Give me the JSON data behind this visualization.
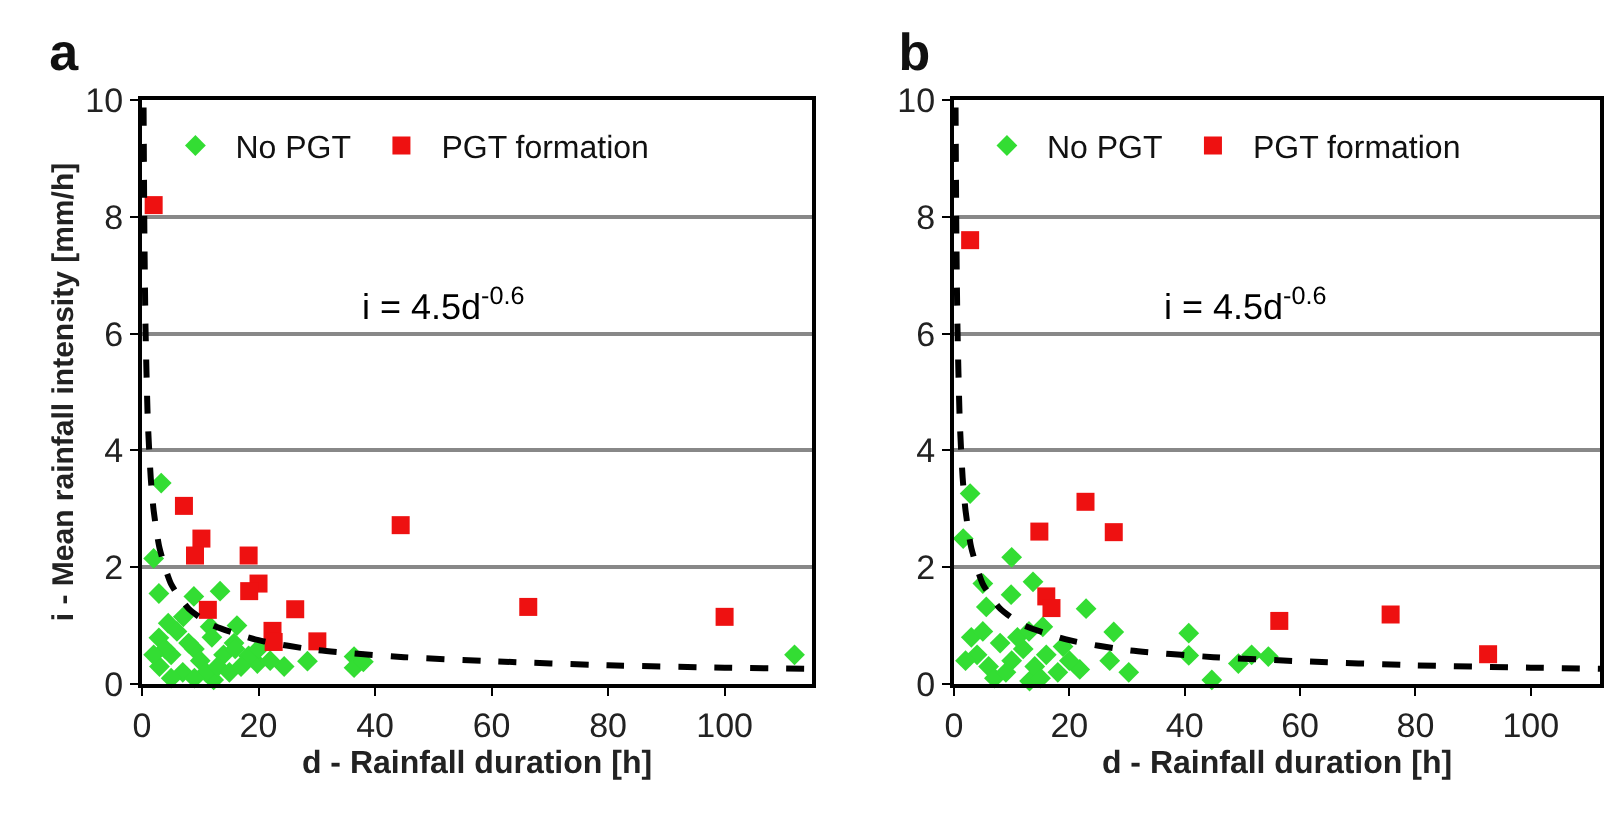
{
  "chart_data": [
    {
      "type": "scatter",
      "title": "a",
      "xlabel": "d - Rainfall duration [h]",
      "ylabel": "i - Mean rainfall intensity [mm/h]",
      "xlim": [
        0,
        115
      ],
      "xticks": [
        0,
        20,
        40,
        60,
        80,
        100
      ],
      "ylim": [
        0,
        10
      ],
      "yticks": [
        0,
        2,
        4,
        6,
        8,
        10
      ],
      "grid": "y",
      "legend": "top left",
      "annotations": [
        "i = 4.5d$^{-0.6}$"
      ],
      "series": [
        {
          "name": "No PGT",
          "color": "#33dd33",
          "marker": "diamond",
          "x": [
            3.3,
            2,
            2.9,
            13.4,
            8.9,
            7.1,
            4.5,
            16.3,
            11.7,
            2.9,
            19.8,
            24.4,
            28.4,
            36.4,
            36.4,
            38,
            18.3,
            15.8,
            12.3,
            112,
            3,
            5,
            7,
            9,
            10,
            12,
            14,
            6,
            8,
            4,
            11,
            13,
            2,
            15,
            5,
            9,
            16,
            20,
            17,
            22
          ],
          "values": [
            3.44,
            2.15,
            1.55,
            1.59,
            1.5,
            1.15,
            1.04,
            1.0,
            0.98,
            0.79,
            0.35,
            0.3,
            0.39,
            0.47,
            0.28,
            0.38,
            0.48,
            0.7,
            0.07,
            0.5,
            0.3,
            0.5,
            0.2,
            0.6,
            0.4,
            0.8,
            0.5,
            0.9,
            0.7,
            0.6,
            0.2,
            0.3,
            0.5,
            0.2,
            0.1,
            0.1,
            0.6,
            0.6,
            0.3,
            0.4
          ]
        },
        {
          "name": "PGT formation",
          "color": "#ee1111",
          "marker": "square",
          "x": [
            2,
            7.2,
            10.2,
            9.1,
            18.3,
            20,
            18.4,
            11.3,
            26.3,
            22.4,
            22.6,
            30.1,
            44.4,
            66.3,
            100
          ],
          "values": [
            8.2,
            3.05,
            2.49,
            2.2,
            2.2,
            1.72,
            1.59,
            1.27,
            1.28,
            0.91,
            0.72,
            0.73,
            2.72,
            1.32,
            1.15
          ]
        },
        {
          "type": "line",
          "color": "#000000",
          "line_style": "dashed",
          "marker": "none",
          "x": [
            0.27,
            0.4,
            0.6,
            1,
            1.5,
            2,
            3,
            5,
            8,
            12,
            20,
            30,
            45,
            60,
            80,
            100,
            115
          ],
          "values": [
            9.87,
            7.8,
            6.11,
            4.5,
            3.53,
            2.97,
            2.33,
            1.71,
            1.29,
            1.01,
            0.75,
            0.58,
            0.46,
            0.39,
            0.32,
            0.28,
            0.26
          ]
        }
      ]
    },
    {
      "type": "scatter",
      "title": "b",
      "xlabel": "d - Rainfall duration [h]",
      "xlim": [
        0,
        112
      ],
      "xticks": [
        0,
        20,
        40,
        60,
        80,
        100
      ],
      "ylim": [
        0,
        10
      ],
      "yticks": [
        0,
        2,
        4,
        6,
        8,
        10
      ],
      "grid": "y",
      "legend": "top left",
      "annotations": [
        "i = 4.5d$^{-0.6}$"
      ],
      "series": [
        {
          "name": "No PGT",
          "color": "#33dd33",
          "marker": "diamond",
          "x": [
            2.8,
            1.6,
            10,
            5,
            13.7,
            5.6,
            9.9,
            22.9,
            15.4,
            27.7,
            40.7,
            18.9,
            40.7,
            44.7,
            49.3,
            51.6,
            54.5,
            30.3,
            27,
            21.8,
            13.1,
            3,
            4,
            6,
            8,
            10,
            12,
            7,
            9,
            5,
            11,
            14,
            16,
            18,
            2,
            13,
            20,
            15
          ],
          "values": [
            3.26,
            2.49,
            2.17,
            1.72,
            1.75,
            1.32,
            1.53,
            1.29,
            0.98,
            0.89,
            0.87,
            0.64,
            0.49,
            0.07,
            0.35,
            0.5,
            0.47,
            0.2,
            0.4,
            0.25,
            0.05,
            0.8,
            0.5,
            0.3,
            0.7,
            0.4,
            0.6,
            0.1,
            0.2,
            0.9,
            0.8,
            0.3,
            0.5,
            0.2,
            0.4,
            0.9,
            0.4,
            0.1
          ]
        },
        {
          "name": "PGT formation",
          "color": "#ee1111",
          "marker": "square",
          "x": [
            2.8,
            14.8,
            22.8,
            27.7,
            16,
            16.9,
            56.4,
            75.7,
            92.6
          ],
          "values": [
            7.6,
            2.61,
            3.12,
            2.6,
            1.5,
            1.3,
            1.08,
            1.19,
            0.51
          ]
        },
        {
          "type": "line",
          "color": "#000000",
          "line_style": "dashed",
          "marker": "none",
          "x": [
            0.27,
            0.4,
            0.6,
            1,
            1.5,
            2,
            3,
            5,
            8,
            12,
            20,
            30,
            45,
            60,
            80,
            100,
            112
          ],
          "values": [
            9.87,
            7.8,
            6.11,
            4.5,
            3.53,
            2.97,
            2.33,
            1.71,
            1.29,
            1.01,
            0.75,
            0.58,
            0.46,
            0.39,
            0.32,
            0.28,
            0.26
          ]
        }
      ]
    }
  ]
}
